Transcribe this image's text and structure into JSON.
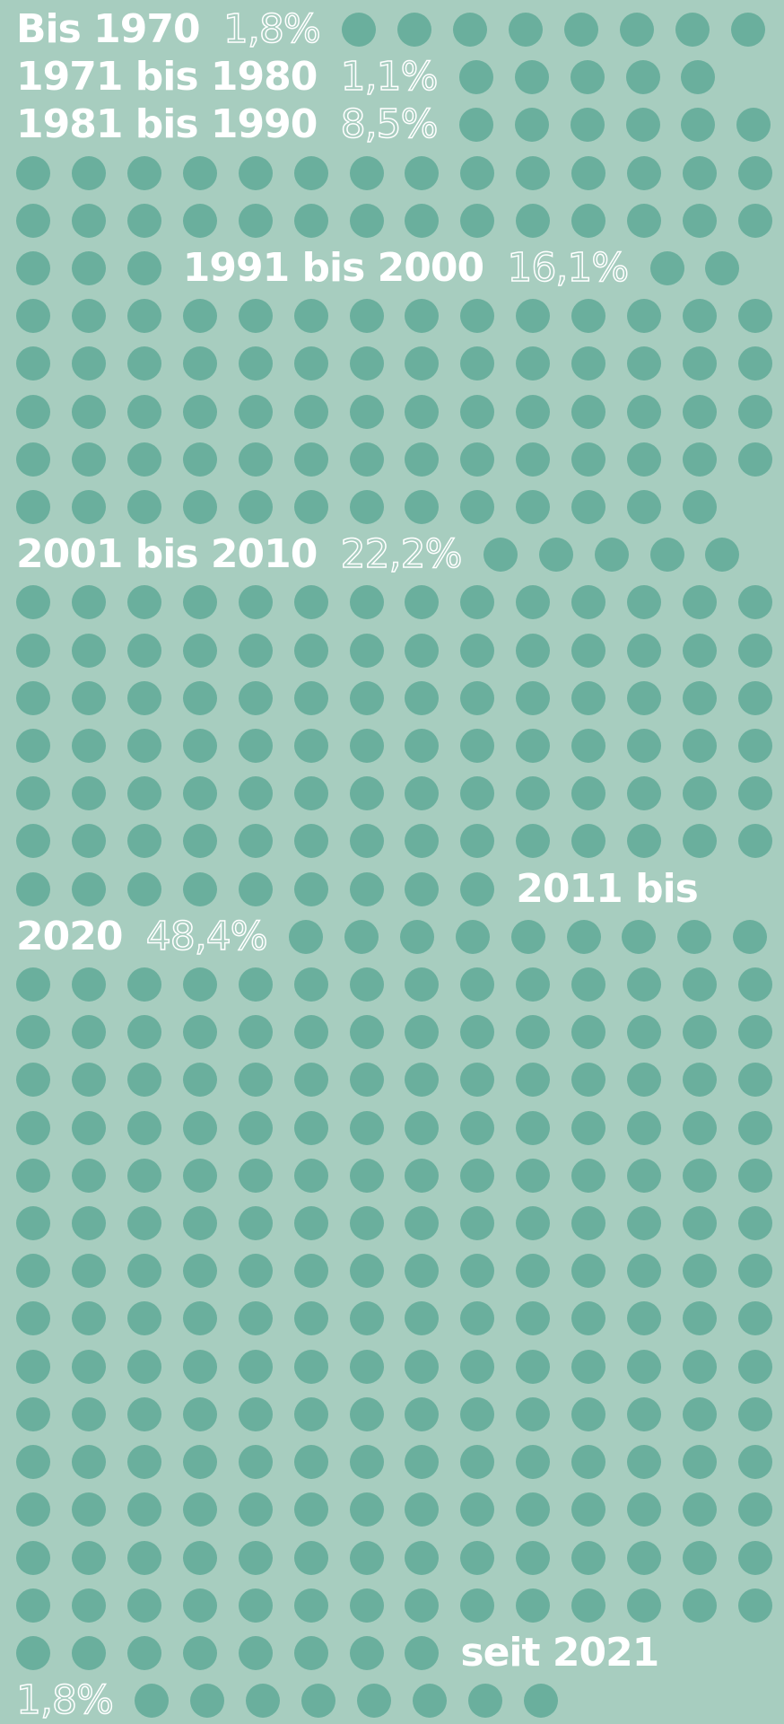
{
  "chart_data": {
    "type": "dotflow",
    "categories": [
      "Bis 1970",
      "1971 bis 1980",
      "1981 bis 1990",
      "1991 bis 2000",
      "2001 bis 2010",
      "2011 bis 2020",
      "seit 2021"
    ],
    "values": [
      1.8,
      1.1,
      8.5,
      16.1,
      22.2,
      48.4,
      1.8
    ],
    "value_labels": [
      "1,8%",
      "1,1%",
      "8,5%",
      "16,1%",
      "22,2%",
      "48,4%",
      "1,8%"
    ],
    "color": "#6aaf9d"
  }
}
